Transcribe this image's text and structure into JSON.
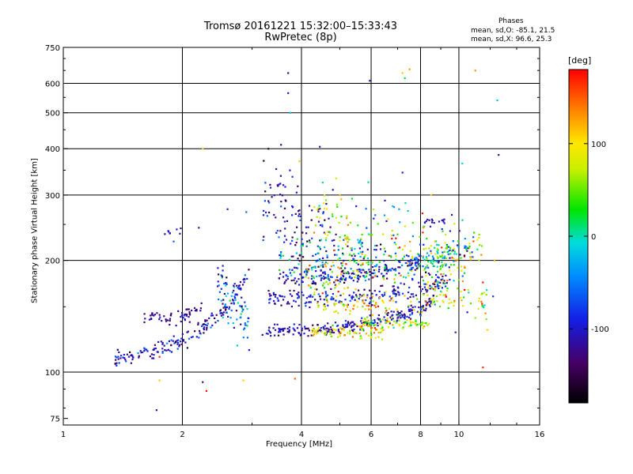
{
  "chart_data": {
    "type": "scatter",
    "title": "Tromsø 20161221 15:32:00–15:33:43",
    "subtitle": "RwPretec (8p)",
    "xlabel": "Frequency [MHz]",
    "ylabel": "Stationary phase Virtual Height [km]",
    "x_scale": "log",
    "y_scale": "log",
    "xlim": [
      1,
      16
    ],
    "ylim": [
      72,
      750
    ],
    "x_ticks": [
      1,
      2,
      4,
      6,
      8,
      10,
      16
    ],
    "x_tick_labels": [
      "1",
      "2",
      "4",
      "6",
      "8",
      "10",
      "16"
    ],
    "y_ticks": [
      75,
      100,
      200,
      300,
      400,
      500,
      600,
      750
    ],
    "y_tick_labels": [
      "75",
      "100",
      "200",
      "300",
      "400",
      "500",
      "600",
      "750"
    ],
    "grid": true,
    "legend": {
      "title": "Phases",
      "lines": [
        "mean, sd,O: -85.1, 21.5",
        "mean, sd,X:  96.6, 25.3"
      ],
      "placement": "top-right"
    },
    "colorbar": {
      "label": "[deg]",
      "range": [
        -180,
        180
      ],
      "ticks": [
        -100,
        0,
        100
      ],
      "tick_labels": [
        "-100",
        "0",
        "100"
      ],
      "colormap": "rainbow",
      "placement": "right"
    },
    "traces": [
      {
        "f0": 1.35,
        "f1": 2.95,
        "h0": 108,
        "h1": 132,
        "curve": 1.4,
        "n": 170,
        "phase": -110,
        "pj": 25,
        "hj": 0.025
      },
      {
        "f0": 1.6,
        "f1": 2.25,
        "h0": 142,
        "h1": 137,
        "curve": 0.4,
        "n": 60,
        "phase": -120,
        "pj": 15,
        "hj": 0.02
      },
      {
        "f0": 2.45,
        "f1": 2.95,
        "h0": 168,
        "h1": 135,
        "curve": 0.0,
        "n": 80,
        "phase": -60,
        "pj": 45,
        "hj": 0.09
      },
      {
        "f0": 3.15,
        "f1": 8.7,
        "h0": 128,
        "h1": 135,
        "curve": 0.6,
        "n": 240,
        "phase": -110,
        "pj": 25,
        "hj": 0.02
      },
      {
        "f0": 4.25,
        "f1": 6.4,
        "h0": 130,
        "h1": 128,
        "curve": 0.0,
        "n": 80,
        "phase": 95,
        "pj": 30,
        "hj": 0.02
      },
      {
        "f0": 5.7,
        "f1": 8.4,
        "h0": 135,
        "h1": 135,
        "curve": 0.0,
        "n": 70,
        "phase": 70,
        "pj": 35,
        "hj": 0.02
      },
      {
        "f0": 3.3,
        "f1": 9.5,
        "h0": 158,
        "h1": 158,
        "curve": 0.5,
        "n": 200,
        "phase": -100,
        "pj": 25,
        "hj": 0.025
      },
      {
        "f0": 4.3,
        "f1": 9.6,
        "h0": 152,
        "h1": 155,
        "curve": 0.0,
        "n": 90,
        "phase": 100,
        "pj": 30,
        "hj": 0.03
      },
      {
        "f0": 3.5,
        "f1": 8.0,
        "h0": 178,
        "h1": 182,
        "curve": 0.4,
        "n": 180,
        "phase": -100,
        "pj": 30,
        "hj": 0.025
      },
      {
        "f0": 4.1,
        "f1": 11.5,
        "h0": 175,
        "h1": 205,
        "curve": 0.3,
        "n": 150,
        "phase": 90,
        "pj": 45,
        "hj": 0.06
      },
      {
        "f0": 3.5,
        "f1": 6.2,
        "h0": 205,
        "h1": 200,
        "curve": 0.2,
        "n": 110,
        "phase": -40,
        "pj": 55,
        "hj": 0.07
      },
      {
        "f0": 3.2,
        "f1": 4.9,
        "h0": 290,
        "h1": 220,
        "curve": 0.0,
        "n": 110,
        "phase": -110,
        "pj": 30,
        "hj": 0.12
      },
      {
        "f0": 4.3,
        "f1": 5.4,
        "h0": 270,
        "h1": 240,
        "curve": 0.0,
        "n": 50,
        "phase": 70,
        "pj": 50,
        "hj": 0.1
      },
      {
        "f0": 5.5,
        "f1": 10.5,
        "h0": 230,
        "h1": 205,
        "curve": 0.0,
        "n": 110,
        "phase": 30,
        "pj": 100,
        "hj": 0.12
      },
      {
        "f0": 8.0,
        "f1": 11.8,
        "h0": 170,
        "h1": 158,
        "curve": 0.0,
        "n": 60,
        "phase": 80,
        "pj": 50,
        "hj": 0.05
      },
      {
        "f0": 7.2,
        "f1": 9.3,
        "h0": 190,
        "h1": 200,
        "curve": 0.0,
        "n": 60,
        "phase": -20,
        "pj": 50,
        "hj": 0.04
      },
      {
        "f0": 8.2,
        "f1": 11.0,
        "h0": 215,
        "h1": 215,
        "curve": 0.0,
        "n": 40,
        "phase": -50,
        "pj": 60,
        "hj": 0.03
      },
      {
        "f0": 1.8,
        "f1": 2.0,
        "h0": 238,
        "h1": 240,
        "curve": 0.0,
        "n": 8,
        "phase": -105,
        "pj": 10,
        "hj": 0.01
      },
      {
        "f0": 8.2,
        "f1": 9.2,
        "h0": 255,
        "h1": 255,
        "curve": 0.0,
        "n": 15,
        "phase": -110,
        "pj": 10,
        "hj": 0.01
      }
    ],
    "points": [
      [
        3.7,
        640,
        -120
      ],
      [
        3.7,
        565,
        -100
      ],
      [
        3.75,
        500,
        -20
      ],
      [
        5.95,
        610,
        -100
      ],
      [
        7.2,
        640,
        110
      ],
      [
        7.3,
        620,
        20
      ],
      [
        7.5,
        655,
        130
      ],
      [
        11.0,
        650,
        130
      ],
      [
        12.5,
        540,
        -20
      ],
      [
        12.6,
        385,
        -120
      ],
      [
        10.2,
        365,
        -10
      ],
      [
        7.2,
        345,
        -100
      ],
      [
        5.9,
        325,
        10
      ],
      [
        4.45,
        405,
        -100
      ],
      [
        3.95,
        370,
        110
      ],
      [
        3.55,
        410,
        -130
      ],
      [
        3.3,
        400,
        -160
      ],
      [
        2.25,
        400,
        110
      ],
      [
        2.9,
        270,
        -60
      ],
      [
        2.6,
        275,
        -100
      ],
      [
        2.2,
        245,
        -100
      ],
      [
        1.9,
        225,
        -60
      ],
      [
        1.75,
        110,
        170
      ],
      [
        1.75,
        95,
        110
      ],
      [
        1.72,
        79,
        -100
      ],
      [
        2.25,
        94,
        -110
      ],
      [
        2.3,
        89,
        175
      ],
      [
        2.85,
        95,
        110
      ],
      [
        3.85,
        96,
        150
      ],
      [
        11.5,
        103,
        165
      ],
      [
        10.5,
        145,
        -100
      ],
      [
        11.0,
        140,
        60
      ],
      [
        11.8,
        130,
        110
      ],
      [
        9.8,
        128,
        -90
      ],
      [
        12.2,
        160,
        -80
      ],
      [
        12.3,
        200,
        120
      ],
      [
        6.5,
        290,
        -100
      ],
      [
        6.8,
        280,
        -20
      ],
      [
        8.5,
        300,
        110
      ],
      [
        9.5,
        240,
        -100
      ],
      [
        4.8,
        310,
        -110
      ],
      [
        5.0,
        300,
        120
      ],
      [
        5.5,
        280,
        -100
      ],
      [
        5.2,
        260,
        130
      ]
    ]
  }
}
